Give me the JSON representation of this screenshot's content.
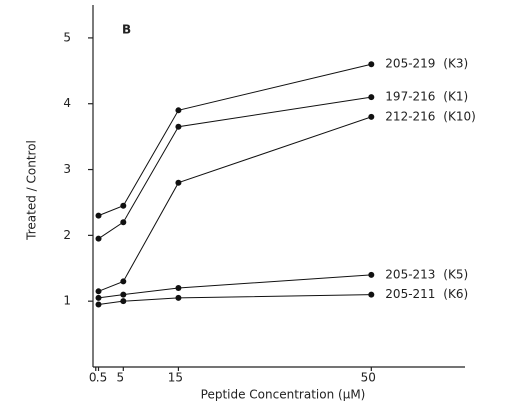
{
  "chart_data": {
    "type": "line",
    "panel_label": "B",
    "x_label": "Peptide Concentration (µM)",
    "y_label": "Treated / Control",
    "x": [
      0.5,
      5,
      15,
      50
    ],
    "series": [
      {
        "name": "205-219",
        "tag": "(K3)",
        "color": "#111111",
        "values": [
          2.3,
          2.45,
          3.9,
          4.6
        ]
      },
      {
        "name": "197-216",
        "tag": "(K1)",
        "color": "#111111",
        "values": [
          1.95,
          2.2,
          3.65,
          4.1
        ]
      },
      {
        "name": "212-216",
        "tag": "(K10)",
        "color": "#111111",
        "values": [
          1.15,
          1.3,
          2.8,
          3.8
        ]
      },
      {
        "name": "205-213",
        "tag": "(K5)",
        "color": "#111111",
        "values": [
          1.05,
          1.1,
          1.2,
          1.4
        ]
      },
      {
        "name": "205-211",
        "tag": "(K6)",
        "color": "#111111",
        "values": [
          0.95,
          1.0,
          1.05,
          1.1
        ]
      }
    ],
    "xlim": [
      -0.5,
      67
    ],
    "xticks": [
      0,
      {
        "value": 0.5,
        "label": ".5"
      },
      5,
      15,
      50
    ],
    "ylim": [
      0,
      5.5
    ],
    "yticks": [
      1,
      2,
      3,
      4,
      5
    ],
    "grid": false
  }
}
